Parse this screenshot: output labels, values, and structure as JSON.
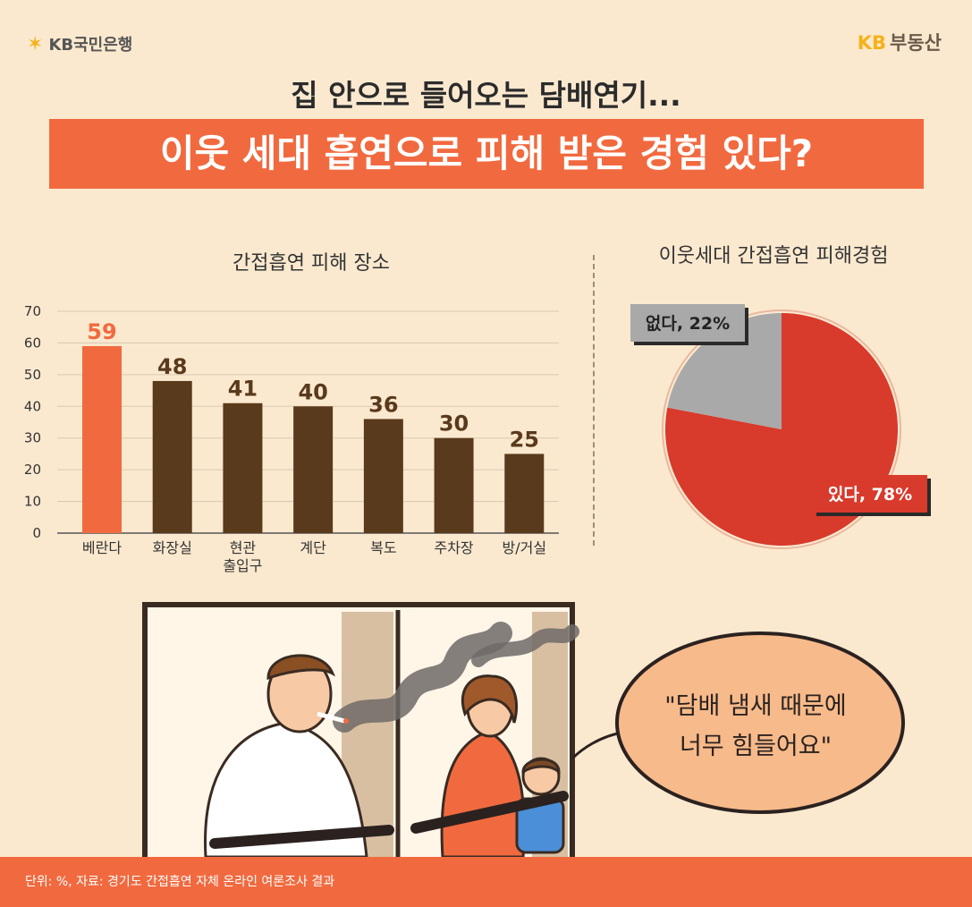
{
  "header": {
    "left_logo_text": "KB국민은행",
    "right_logo_kb": "KB",
    "right_logo_text": "부동산",
    "subtitle": "집 안으로 들어오는 담배연기...",
    "title": "이웃 세대 흡연으로 피해 받은 경험 있다?"
  },
  "illustration": {
    "speech_line1": "\"담배 냄새 때문에",
    "speech_line2": "너무 힘들어요\""
  },
  "footer": {
    "source": "단위: %, 자료: 경기도 간접흡연 자체 온라인 여론조사 결과"
  },
  "colors": {
    "accent": "#f16a3f",
    "bar": "#5a3a1c",
    "pie_yes": "#d83a2c",
    "pie_no": "#a9a9a9",
    "background": "#fbe9cf"
  },
  "chart_data": [
    {
      "type": "bar",
      "title": "간접흡연 피해 장소",
      "categories": [
        [
          "베란다"
        ],
        [
          "화장실"
        ],
        [
          "현관",
          "출입구"
        ],
        [
          "계단"
        ],
        [
          "복도"
        ],
        [
          "주차장"
        ],
        [
          "방/거실"
        ]
      ],
      "values": [
        59,
        48,
        41,
        40,
        36,
        30,
        25
      ],
      "highlight_index": 0,
      "ylim": [
        0,
        70
      ],
      "yticks": [
        0,
        10,
        20,
        30,
        40,
        50,
        60,
        70
      ],
      "grid": true
    },
    {
      "type": "pie",
      "title": "이웃세대 간접흡연 피해경험",
      "slices": [
        {
          "label": "있다, 78%",
          "value": 78
        },
        {
          "label": "없다, 22%",
          "value": 22
        }
      ]
    }
  ]
}
